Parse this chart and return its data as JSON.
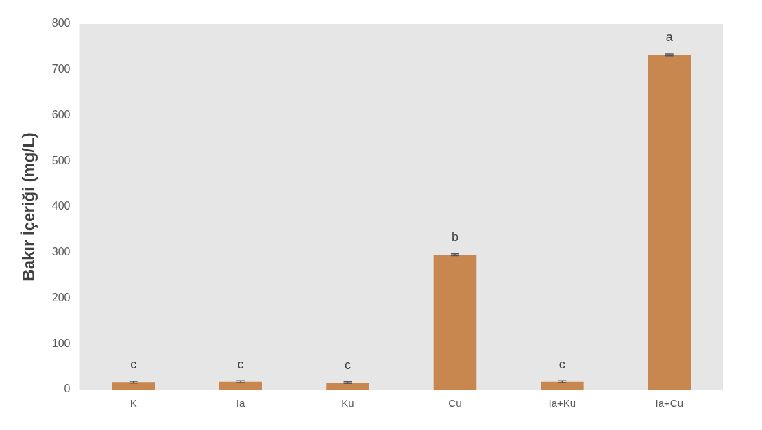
{
  "chart_data": {
    "type": "bar",
    "ylabel": "Bakır İçeriği (mg/L)",
    "categories": [
      "K",
      "Ia",
      "Ku",
      "Cu",
      "Ia+Ku",
      "Ia+Cu"
    ],
    "values": [
      16,
      17,
      15,
      295,
      17,
      732
    ],
    "errors": [
      2,
      2,
      2,
      2,
      2,
      2
    ],
    "color": "#c8874f",
    "ylim": [
      0,
      800
    ],
    "yticks": [
      0,
      100,
      200,
      300,
      400,
      500,
      600,
      700,
      800
    ],
    "grid": false,
    "annotations": [
      {
        "text": "c",
        "x": "K",
        "y": 16
      },
      {
        "text": "c",
        "x": "Ia",
        "y": 17
      },
      {
        "text": "c",
        "x": "Ku",
        "y": 15
      },
      {
        "text": "b",
        "x": "Cu",
        "y": 295
      },
      {
        "text": "c",
        "x": "Ia+Ku",
        "y": 17
      },
      {
        "text": "a",
        "x": "Ia+Cu",
        "y": 732
      }
    ]
  }
}
